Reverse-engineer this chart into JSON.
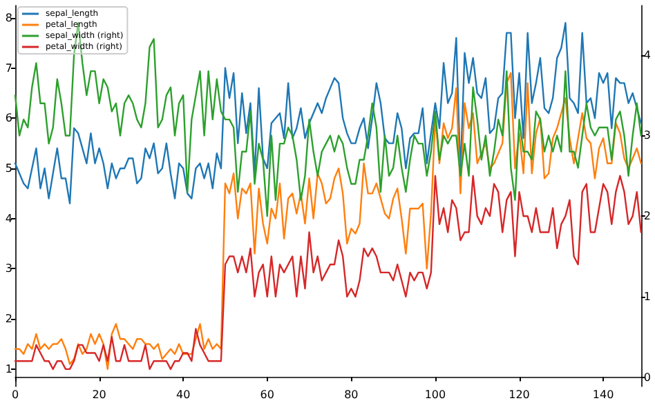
{
  "chart_data": {
    "type": "line",
    "x": [
      0,
      1,
      2,
      3,
      4,
      5,
      6,
      7,
      8,
      9,
      10,
      11,
      12,
      13,
      14,
      15,
      16,
      17,
      18,
      19,
      20,
      21,
      22,
      23,
      24,
      25,
      26,
      27,
      28,
      29,
      30,
      31,
      32,
      33,
      34,
      35,
      36,
      37,
      38,
      39,
      40,
      41,
      42,
      43,
      44,
      45,
      46,
      47,
      48,
      49,
      50,
      51,
      52,
      53,
      54,
      55,
      56,
      57,
      58,
      59,
      60,
      61,
      62,
      63,
      64,
      65,
      66,
      67,
      68,
      69,
      70,
      71,
      72,
      73,
      74,
      75,
      76,
      77,
      78,
      79,
      80,
      81,
      82,
      83,
      84,
      85,
      86,
      87,
      88,
      89,
      90,
      91,
      92,
      93,
      94,
      95,
      96,
      97,
      98,
      99,
      100,
      101,
      102,
      103,
      104,
      105,
      106,
      107,
      108,
      109,
      110,
      111,
      112,
      113,
      114,
      115,
      116,
      117,
      118,
      119,
      120,
      121,
      122,
      123,
      124,
      125,
      126,
      127,
      128,
      129,
      130,
      131,
      132,
      133,
      134,
      135,
      136,
      137,
      138,
      139,
      140,
      141,
      142,
      143,
      144,
      145,
      146,
      147,
      148,
      149
    ],
    "xlim": [
      0,
      149
    ],
    "xticks": [
      0,
      20,
      40,
      60,
      80,
      100,
      120,
      140
    ],
    "ylim": [
      0.655,
      8.245
    ],
    "yticks": [
      1,
      2,
      3,
      4,
      5,
      6,
      7,
      8
    ],
    "y2lim": [
      -0.115,
      4.615
    ],
    "y2ticks": [
      0,
      1,
      2,
      3,
      4
    ],
    "legend": "top left",
    "marker": "none",
    "line_style": "solid",
    "series": [
      {
        "name": "sepal_length",
        "color": "#1f77b4",
        "values": [
          5.1,
          4.9,
          4.7,
          4.6,
          5.0,
          5.4,
          4.6,
          5.0,
          4.4,
          4.9,
          5.4,
          4.8,
          4.8,
          4.3,
          5.8,
          5.7,
          5.4,
          5.1,
          5.7,
          5.1,
          5.4,
          5.1,
          4.6,
          5.1,
          4.8,
          5.0,
          5.0,
          5.2,
          5.2,
          4.7,
          4.8,
          5.4,
          5.2,
          5.5,
          4.9,
          5.0,
          5.5,
          4.9,
          4.4,
          5.1,
          5.0,
          4.5,
          4.4,
          5.0,
          5.1,
          4.8,
          5.1,
          4.6,
          5.3,
          5.0,
          7.0,
          6.4,
          6.9,
          5.5,
          6.5,
          5.7,
          6.3,
          4.9,
          6.6,
          5.2,
          5.0,
          5.9,
          6.0,
          6.1,
          5.6,
          6.7,
          5.6,
          5.8,
          6.2,
          5.6,
          5.9,
          6.1,
          6.3,
          6.1,
          6.4,
          6.6,
          6.8,
          6.7,
          6.0,
          5.7,
          5.5,
          5.5,
          5.8,
          6.0,
          5.4,
          6.0,
          6.7,
          6.3,
          5.6,
          5.5,
          5.5,
          6.1,
          5.8,
          5.0,
          5.6,
          5.7,
          5.7,
          6.2,
          5.1,
          5.7,
          6.3,
          5.8,
          7.1,
          6.3,
          6.5,
          7.6,
          4.9,
          7.3,
          6.7,
          7.2,
          6.5,
          6.4,
          6.8,
          5.7,
          5.8,
          6.4,
          6.5,
          7.7,
          7.7,
          6.0,
          6.9,
          5.6,
          7.7,
          6.3,
          6.7,
          7.2,
          6.2,
          6.1,
          6.4,
          7.2,
          7.4,
          7.9,
          6.4,
          6.3,
          6.1,
          7.7,
          6.3,
          6.4,
          6.0,
          6.9,
          6.7,
          6.9,
          5.8,
          6.8,
          6.7,
          6.7,
          6.3,
          6.5,
          6.2,
          5.9
        ]
      },
      {
        "name": "petal_length",
        "color": "#ff7f0e",
        "values": [
          1.4,
          1.4,
          1.3,
          1.5,
          1.4,
          1.7,
          1.4,
          1.5,
          1.4,
          1.5,
          1.5,
          1.6,
          1.4,
          1.1,
          1.2,
          1.5,
          1.3,
          1.4,
          1.7,
          1.5,
          1.7,
          1.5,
          1.0,
          1.7,
          1.9,
          1.6,
          1.6,
          1.5,
          1.4,
          1.6,
          1.6,
          1.5,
          1.5,
          1.4,
          1.5,
          1.2,
          1.3,
          1.4,
          1.3,
          1.5,
          1.3,
          1.3,
          1.3,
          1.6,
          1.9,
          1.4,
          1.6,
          1.4,
          1.5,
          1.4,
          4.7,
          4.5,
          4.9,
          4.0,
          4.6,
          4.5,
          4.7,
          3.3,
          4.6,
          3.9,
          3.5,
          4.2,
          4.0,
          4.7,
          3.6,
          4.4,
          4.5,
          4.1,
          4.5,
          3.9,
          4.8,
          4.0,
          4.9,
          4.7,
          4.3,
          4.4,
          4.8,
          5.0,
          4.5,
          3.5,
          3.8,
          3.7,
          3.9,
          5.1,
          4.5,
          4.5,
          4.7,
          4.4,
          4.1,
          4.0,
          4.4,
          4.6,
          4.0,
          3.3,
          4.2,
          4.2,
          4.2,
          4.3,
          3.0,
          4.1,
          6.0,
          5.1,
          5.9,
          5.6,
          5.8,
          6.6,
          4.5,
          6.3,
          5.8,
          6.1,
          5.1,
          5.3,
          5.5,
          5.0,
          5.1,
          5.3,
          5.5,
          6.7,
          6.9,
          5.0,
          5.7,
          4.9,
          6.7,
          4.9,
          5.7,
          6.0,
          4.8,
          4.9,
          5.6,
          5.8,
          6.1,
          6.4,
          5.6,
          5.1,
          5.6,
          6.1,
          5.6,
          5.5,
          4.8,
          5.4,
          5.6,
          5.1,
          5.1,
          5.9,
          5.7,
          5.2,
          5.0,
          5.2,
          5.4,
          5.1
        ]
      },
      {
        "name": "sepal_width (right)",
        "color": "#2ca02c",
        "axis": "y2",
        "values": [
          3.5,
          3.0,
          3.2,
          3.1,
          3.6,
          3.9,
          3.4,
          3.4,
          2.9,
          3.1,
          3.7,
          3.4,
          3.0,
          3.0,
          4.0,
          4.4,
          3.9,
          3.5,
          3.8,
          3.8,
          3.4,
          3.7,
          3.6,
          3.3,
          3.4,
          3.0,
          3.4,
          3.5,
          3.4,
          3.2,
          3.1,
          3.4,
          4.1,
          4.2,
          3.1,
          3.2,
          3.5,
          3.6,
          3.0,
          3.4,
          3.5,
          2.3,
          3.2,
          3.5,
          3.8,
          3.0,
          3.8,
          3.2,
          3.7,
          3.3,
          3.2,
          3.2,
          3.1,
          2.3,
          2.8,
          2.8,
          3.3,
          2.4,
          2.9,
          2.7,
          2.0,
          3.0,
          2.2,
          2.9,
          2.9,
          3.1,
          3.0,
          2.7,
          2.2,
          2.5,
          3.2,
          2.8,
          2.5,
          2.8,
          2.9,
          3.0,
          2.8,
          3.0,
          2.9,
          2.6,
          2.4,
          2.4,
          2.7,
          2.7,
          3.0,
          3.4,
          3.1,
          2.3,
          3.0,
          2.5,
          2.6,
          3.0,
          2.6,
          2.3,
          2.7,
          3.0,
          2.9,
          2.9,
          2.5,
          2.8,
          3.3,
          2.7,
          3.0,
          2.9,
          3.0,
          3.0,
          2.5,
          2.9,
          2.5,
          3.6,
          3.2,
          2.7,
          3.0,
          2.5,
          2.8,
          3.2,
          3.0,
          3.8,
          2.6,
          2.2,
          3.2,
          2.8,
          2.8,
          2.7,
          3.3,
          3.2,
          2.8,
          3.0,
          2.8,
          3.0,
          2.8,
          3.8,
          2.8,
          2.8,
          2.6,
          3.0,
          3.4,
          3.1,
          3.0,
          3.1,
          3.1,
          3.1,
          2.7,
          3.2,
          3.3,
          3.0,
          2.5,
          3.0,
          3.4,
          3.0
        ]
      },
      {
        "name": "petal_width (right)",
        "color": "#d62728",
        "axis": "y2",
        "values": [
          0.2,
          0.2,
          0.2,
          0.2,
          0.2,
          0.4,
          0.3,
          0.2,
          0.2,
          0.1,
          0.2,
          0.2,
          0.1,
          0.1,
          0.2,
          0.4,
          0.4,
          0.3,
          0.3,
          0.3,
          0.2,
          0.4,
          0.2,
          0.5,
          0.2,
          0.2,
          0.4,
          0.2,
          0.2,
          0.2,
          0.2,
          0.4,
          0.1,
          0.2,
          0.2,
          0.2,
          0.2,
          0.1,
          0.2,
          0.2,
          0.3,
          0.3,
          0.2,
          0.6,
          0.4,
          0.3,
          0.2,
          0.2,
          0.2,
          0.2,
          1.4,
          1.5,
          1.5,
          1.3,
          1.5,
          1.3,
          1.6,
          1.0,
          1.3,
          1.4,
          1.0,
          1.5,
          1.0,
          1.4,
          1.3,
          1.4,
          1.5,
          1.0,
          1.5,
          1.1,
          1.8,
          1.3,
          1.5,
          1.2,
          1.3,
          1.4,
          1.4,
          1.7,
          1.5,
          1.0,
          1.1,
          1.0,
          1.2,
          1.6,
          1.5,
          1.6,
          1.5,
          1.3,
          1.3,
          1.3,
          1.2,
          1.4,
          1.2,
          1.0,
          1.3,
          1.2,
          1.3,
          1.3,
          1.1,
          1.3,
          2.5,
          1.9,
          2.1,
          1.8,
          2.2,
          2.1,
          1.7,
          1.8,
          1.8,
          2.5,
          2.0,
          1.9,
          2.1,
          2.0,
          2.4,
          2.3,
          1.8,
          2.2,
          2.3,
          1.5,
          2.3,
          2.0,
          2.0,
          1.8,
          2.1,
          1.8,
          1.8,
          1.8,
          2.1,
          1.6,
          1.9,
          2.0,
          2.2,
          1.5,
          1.4,
          2.3,
          2.4,
          1.8,
          1.8,
          2.1,
          2.4,
          2.3,
          1.9,
          2.3,
          2.5,
          2.3,
          1.9,
          2.0,
          2.3,
          1.8
        ]
      }
    ]
  }
}
